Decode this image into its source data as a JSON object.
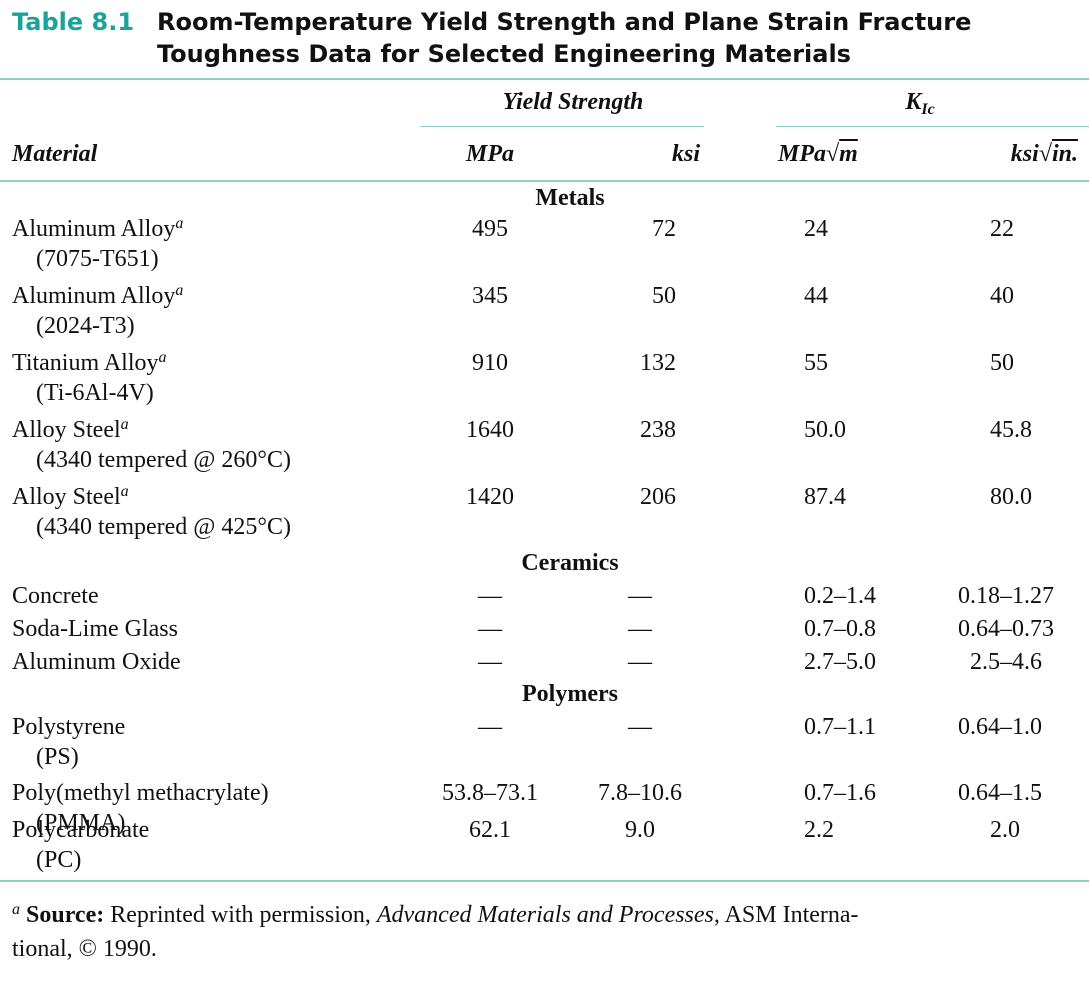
{
  "table": {
    "number": "Table 8.1",
    "title_line1": "Room-Temperature Yield Strength and Plane Strain Fracture",
    "title_line2": "Toughness Data for Selected Engineering Materials",
    "header": {
      "yield_group": "Yield Strength",
      "kic_group": "K",
      "kic_sub": "Ic",
      "material": "Material",
      "mpa": "MPa",
      "ksi": "ksi",
      "mpa_sqrt_base": "MPa",
      "mpa_sqrt_symbol": "√",
      "mpa_sqrt_arg": "m",
      "ksi_sqrt_base": "ksi",
      "ksi_sqrt_symbol": "√",
      "ksi_sqrt_arg": "in."
    },
    "sections": {
      "metals": "Metals",
      "ceramics": "Ceramics",
      "polymers": "Polymers"
    },
    "footnote_marker": "a",
    "rows": [
      {
        "name": "Aluminum Alloy",
        "sup": "a",
        "sub": "(7075-T651)",
        "mpa": "495",
        "ksi": "72",
        "kic_m": "24",
        "kic_in": "22"
      },
      {
        "name": "Aluminum Alloy",
        "sup": "a",
        "sub": "(2024-T3)",
        "mpa": "345",
        "ksi": "50",
        "kic_m": "44",
        "kic_in": "40"
      },
      {
        "name": "Titanium Alloy",
        "sup": "a",
        "sub": "(Ti-6Al-4V)",
        "mpa": "910",
        "ksi": "132",
        "kic_m": "55",
        "kic_in": "50"
      },
      {
        "name": "Alloy Steel",
        "sup": "a",
        "sub": "(4340 tempered @ 260°C)",
        "mpa": "1640",
        "ksi": "238",
        "kic_m": "50.0",
        "kic_in": "45.8"
      },
      {
        "name": "Alloy Steel",
        "sup": "a",
        "sub": "(4340 tempered @ 425°C)",
        "mpa": "1420",
        "ksi": "206",
        "kic_m": "87.4",
        "kic_in": "80.0"
      },
      {
        "name": "Concrete",
        "mpa": "—",
        "ksi": "—",
        "kic_m": "0.2–1.4",
        "kic_in": "0.18–1.27"
      },
      {
        "name": "Soda-Lime Glass",
        "mpa": "—",
        "ksi": "—",
        "kic_m": "0.7–0.8",
        "kic_in": "0.64–0.73"
      },
      {
        "name": "Aluminum Oxide",
        "mpa": "—",
        "ksi": "—",
        "kic_m": "2.7–5.0",
        "kic_in": "2.5–4.6"
      },
      {
        "name": "Polystyrene",
        "sub": "(PS)",
        "mpa": "—",
        "ksi": "—",
        "kic_m": "0.7–1.1",
        "kic_in": "0.64–1.0"
      },
      {
        "name": "Poly(methyl methacrylate)",
        "sub": "(PMMA)",
        "mpa": "53.8–73.1",
        "ksi": "7.8–10.6",
        "kic_m": "0.7–1.6",
        "kic_in": "0.64–1.5"
      },
      {
        "name": "Polycarbonate",
        "sub": "(PC)",
        "mpa": "62.1",
        "ksi": "9.0",
        "kic_m": "2.2",
        "kic_in": "2.0"
      }
    ],
    "footnote": {
      "marker": "a",
      "label": "Source:",
      "text1": " Reprinted with permission, ",
      "italic": "Advanced Materials and Processes,",
      "text2": " ASM Interna-",
      "line2": "tional, © 1990."
    }
  }
}
